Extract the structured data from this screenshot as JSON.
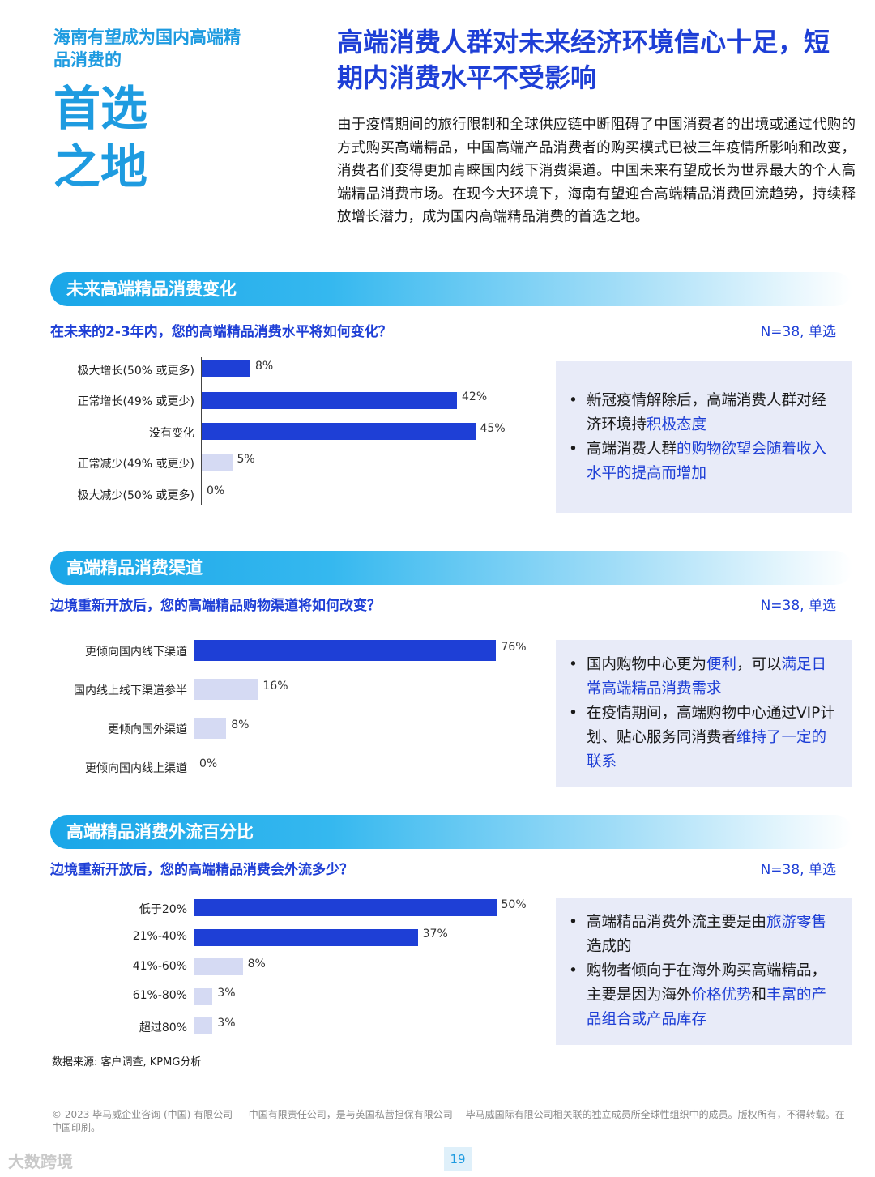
{
  "brand": {
    "subtitle": "海南有望成为国内高端精品消费的",
    "big1": "首选",
    "big2": "之地"
  },
  "header": {
    "headline": "高端消费人群对未来经济环境信心十足，短期内消费水平不受影响",
    "intro": "由于疫情期间的旅行限制和全球供应链中断阻碍了中国消费者的出境或通过代购的方式购买高端精品，中国高端产品消费者的购买模式已被三年疫情所影响和改变，消费者们变得更加青睐国内线下消费渠道。中国未来有望成长为世界最大的个人高端精品消费市场。在现今大环境下，海南有望迎合高端精品消费回流趋势，持续释放增长潜力，成为国内高端精品消费的首选之地。"
  },
  "sections": [
    {
      "title": "未来高端精品消费变化",
      "question": "在未来的2-3年内，您的高端精品消费水平将如何变化？",
      "n_label": "N=38, 单选",
      "notes": [
        [
          {
            "t": "新冠疫情解除后，高端消费人群对经济环境持",
            "h": false
          },
          {
            "t": "积极态度",
            "h": true
          }
        ],
        [
          {
            "t": "高端消费人群",
            "h": false
          },
          {
            "t": "的购物欲望会随着收入水平的提高而增加",
            "h": true
          }
        ]
      ]
    },
    {
      "title": "高端精品消费渠道",
      "question": "边境重新开放后，您的高端精品购物渠道将如何改变？",
      "n_label": "N=38, 单选",
      "notes": [
        [
          {
            "t": "国内购物中心更为",
            "h": false
          },
          {
            "t": "便利",
            "h": true
          },
          {
            "t": "，可以",
            "h": false
          },
          {
            "t": "满足日常高端精品消费需求",
            "h": true
          }
        ],
        [
          {
            "t": "在疫情期间，高端购物中心通过VIP计划、贴心服务同消费者",
            "h": false
          },
          {
            "t": "维持了一定的联系",
            "h": true
          }
        ]
      ]
    },
    {
      "title": "高端精品消费外流百分比",
      "question": "边境重新开放后，您的高端精品消费会外流多少？",
      "n_label": "N=38, 单选",
      "notes": [
        [
          {
            "t": "高端精品消费外流主要是由",
            "h": false
          },
          {
            "t": "旅游零售",
            "h": true
          },
          {
            "t": "造成的",
            "h": false
          }
        ],
        [
          {
            "t": "购物者倾向于在海外购买高端精品，主要是因为海外",
            "h": false
          },
          {
            "t": "价格优势",
            "h": true
          },
          {
            "t": "和",
            "h": false
          },
          {
            "t": "丰富的产品组合或产品库存",
            "h": true
          }
        ]
      ]
    }
  ],
  "chart_data": [
    {
      "type": "bar",
      "orientation": "horizontal",
      "categories": [
        "极大增长(50% 或更多)",
        "正常增长(49% 或更少)",
        "没有变化",
        "正常减少(49% 或更少)",
        "极大减少(50% 或更多)"
      ],
      "values": [
        8,
        42,
        45,
        5,
        0
      ],
      "value_labels": [
        "8%",
        "42%",
        "45%",
        "5%",
        "0%"
      ],
      "colors": [
        "#1e3fd6",
        "#1e3fd6",
        "#1e3fd6",
        "#d5daf3",
        "#d5daf3"
      ]
    },
    {
      "type": "bar",
      "orientation": "horizontal",
      "categories": [
        "更倾向国内线下渠道",
        "国内线上线下渠道参半",
        "更倾向国外渠道",
        "更倾向国内线上渠道"
      ],
      "values": [
        76,
        16,
        8,
        0
      ],
      "value_labels": [
        "76%",
        "16%",
        "8%",
        "0%"
      ],
      "colors": [
        "#1e3fd6",
        "#d5daf3",
        "#d5daf3",
        "#d5daf3"
      ]
    },
    {
      "type": "bar",
      "orientation": "horizontal",
      "categories": [
        "低于20%",
        "21%-40%",
        "41%-60%",
        "61%-80%",
        "超过80%"
      ],
      "values": [
        50,
        37,
        8,
        3,
        3
      ],
      "value_labels": [
        "50%",
        "37%",
        "8%",
        "3%",
        "3%"
      ],
      "colors": [
        "#1e3fd6",
        "#1e3fd6",
        "#d5daf3",
        "#d5daf3",
        "#d5daf3"
      ]
    }
  ],
  "footer": {
    "source": "数据来源: 客户调查, KPMG分析",
    "copyright": "© 2023 毕马威企业咨询 (中国) 有限公司 — 中国有限责任公司，是与英国私营担保有限公司— 毕马威国际有限公司相关联的独立成员所全球性组织中的成员。版权所有，不得转载。在中国印刷。",
    "page": "19",
    "watermark": "大数跨境"
  }
}
